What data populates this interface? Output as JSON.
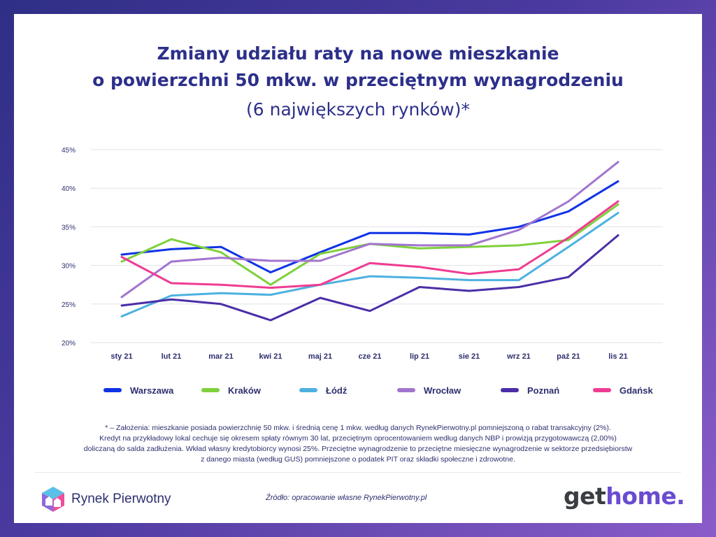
{
  "title_line1": "Zmiany udziału raty na nowe mieszkanie",
  "title_line2": "o powierzchni 50 mkw. w przeciętnym wynagrodzeniu",
  "subtitle": "(6 największych rynków)*",
  "chart_data": {
    "type": "line",
    "categories": [
      "sty 21",
      "lut 21",
      "mar 21",
      "kwi 21",
      "maj 21",
      "cze 21",
      "lip 21",
      "sie 21",
      "wrz 21",
      "paź 21",
      "lis 21"
    ],
    "y_ticks": [
      "20%",
      "25%",
      "30%",
      "35%",
      "40%",
      "45%"
    ],
    "ylim": [
      20,
      45
    ],
    "grid": true,
    "legend_position": "bottom",
    "series": [
      {
        "name": "Warszawa",
        "color": "#1033e6",
        "values": [
          31.4,
          32.1,
          32.4,
          29.1,
          31.7,
          34.2,
          34.2,
          34.0,
          35.0,
          37.0,
          40.9
        ]
      },
      {
        "name": "Kraków",
        "color": "#7ed13c",
        "values": [
          30.5,
          33.4,
          31.7,
          27.5,
          31.5,
          32.8,
          32.2,
          32.4,
          32.6,
          33.3,
          37.9
        ]
      },
      {
        "name": "Łódź",
        "color": "#4db1e0",
        "values": [
          23.4,
          26.1,
          26.4,
          26.2,
          27.5,
          28.6,
          28.4,
          28.1,
          28.1,
          32.4,
          36.8
        ]
      },
      {
        "name": "Wrocław",
        "color": "#a274cf",
        "values": [
          25.9,
          30.5,
          31.0,
          30.6,
          30.6,
          32.8,
          32.6,
          32.6,
          34.6,
          38.3,
          43.4
        ]
      },
      {
        "name": "Poznań",
        "color": "#4b2ea8",
        "values": [
          24.8,
          25.6,
          25.0,
          22.9,
          25.8,
          24.1,
          27.2,
          26.7,
          27.2,
          28.5,
          33.9
        ]
      },
      {
        "name": "Gdańsk",
        "color": "#ef3c92",
        "values": [
          31.1,
          27.7,
          27.5,
          27.1,
          27.5,
          30.3,
          29.8,
          28.9,
          29.5,
          33.6,
          38.3
        ]
      }
    ]
  },
  "footnote": [
    "* – Założenia: mieszkanie posiada powierzchnię 50 mkw. i średnią cenę 1 mkw. według danych RynekPierwotny.pl pomniejszoną o rabat transakcyjny (2%).",
    "Kredyt na przykładowy lokal cechuje się okresem spłaty równym 30 lat, przeciętnym oprocentowaniem według danych NBP i prowizją przygotowawczą (2,00%)",
    "doliczaną do salda zadłużenia. Wkład własny kredytobiorcy wynosi 25%. Przeciętne wynagrodzenie to przeciętne miesięczne wynagrodzenie w sektorze przedsiębiorstw",
    "z danego miasta (według GUS) pomniejszone o podatek PIT oraz składki społeczne i zdrowotne."
  ],
  "source": "Źródło: opracowanie własne RynekPierwotny.pl",
  "logo_left_text": "Rynek Pierwotny",
  "logo_right_get": "get",
  "logo_right_home": "home."
}
